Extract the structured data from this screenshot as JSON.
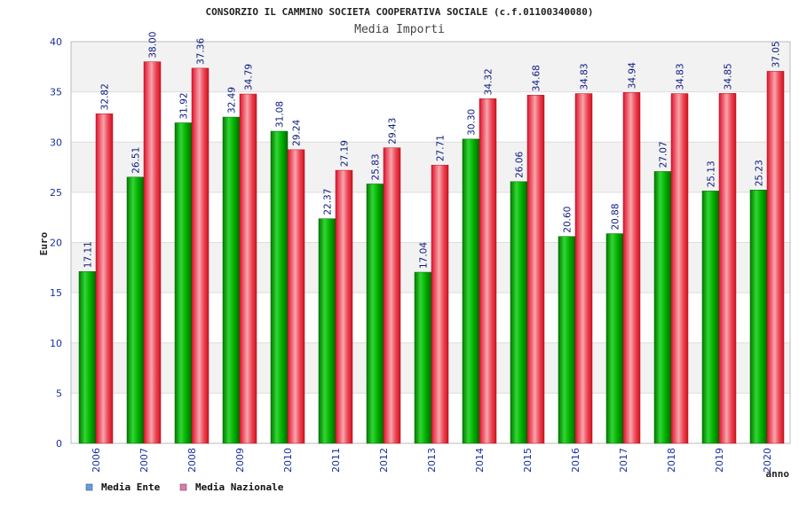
{
  "chart_data": {
    "type": "bar",
    "title": "CONSORZIO IL CAMMINO SOCIETA COOPERATIVA SOCIALE (c.f.01100340080)",
    "subtitle": "Media Importi",
    "xlabel": "anno",
    "ylabel": "Euro",
    "ylim": [
      0,
      40
    ],
    "yticks": [
      "0",
      "5",
      "10",
      "15",
      "20",
      "25",
      "30",
      "35",
      "40"
    ],
    "categories": [
      "2006",
      "2007",
      "2008",
      "2009",
      "2010",
      "2011",
      "2012",
      "2013",
      "2014",
      "2015",
      "2016",
      "2017",
      "2018",
      "2019",
      "2020"
    ],
    "series": [
      {
        "name": "Media Ente",
        "color": "#00a000",
        "values": [
          17.11,
          26.51,
          31.92,
          32.49,
          31.08,
          22.37,
          25.83,
          17.04,
          30.3,
          26.06,
          20.6,
          20.88,
          27.07,
          25.13,
          25.23
        ],
        "labels": [
          "17.11",
          "26.51",
          "31.92",
          "32.49",
          "31.08",
          "22.37",
          "25.83",
          "17.04",
          "30.30",
          "26.06",
          "20.60",
          "20.88",
          "27.07",
          "25.13",
          "25.23"
        ]
      },
      {
        "name": "Media Nazionale",
        "color": "#e8202a",
        "values": [
          32.82,
          38.0,
          37.36,
          34.79,
          29.24,
          27.19,
          29.43,
          27.71,
          34.32,
          34.68,
          34.83,
          34.94,
          34.83,
          34.85,
          37.05
        ],
        "labels": [
          "32.82",
          "38.00",
          "37.36",
          "34.79",
          "29.24",
          "27.19",
          "29.43",
          "27.71",
          "34.32",
          "34.68",
          "34.83",
          "34.94",
          "34.83",
          "34.85",
          "37.05"
        ]
      }
    ],
    "legend": {
      "placement": "bottom-left",
      "items": [
        {
          "label": "Media Ente",
          "swatch_color": "#5f9ee6"
        },
        {
          "label": "Media Nazionale",
          "swatch_color": "#e27aa8"
        }
      ]
    },
    "grid": true
  }
}
